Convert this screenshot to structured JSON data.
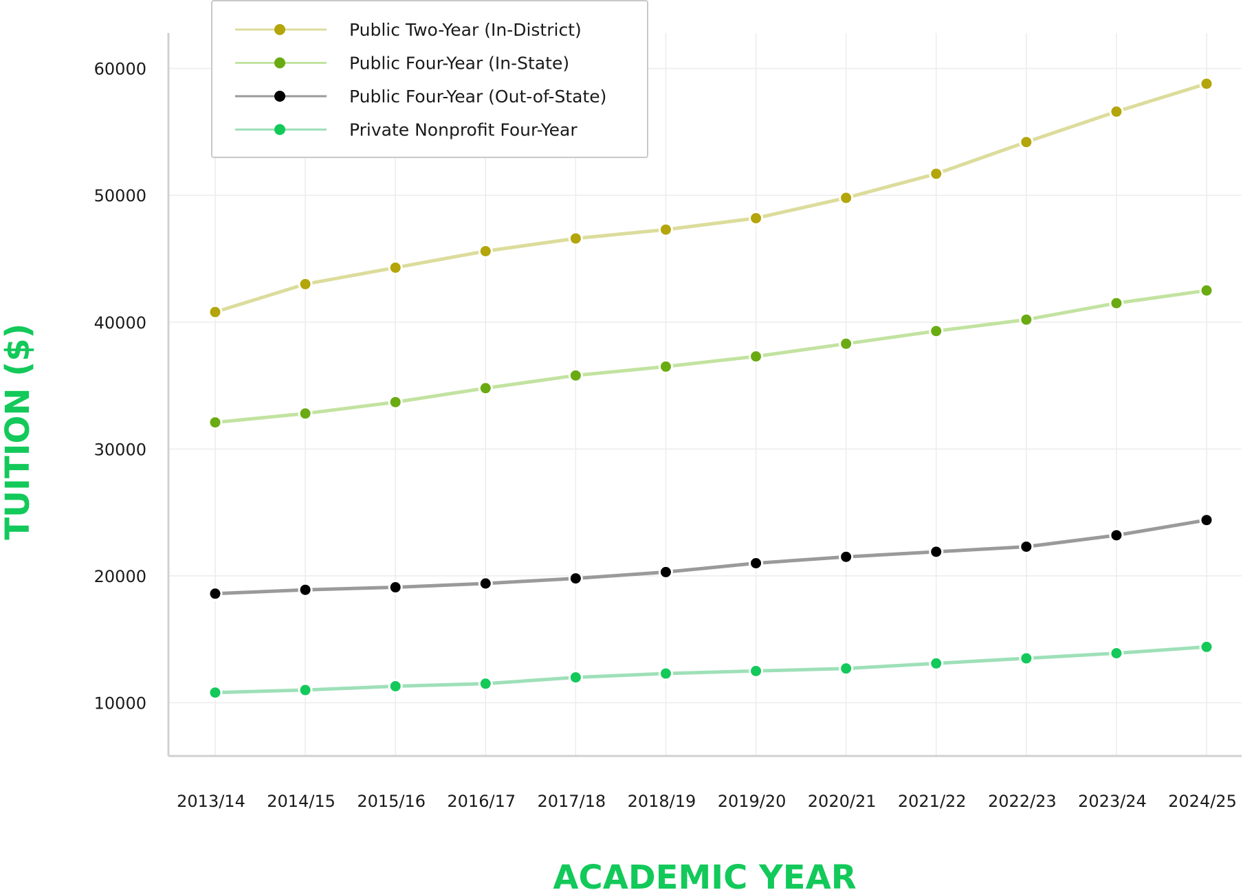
{
  "chart_data": {
    "type": "line",
    "title": "",
    "xlabel": "ACADEMIC YEAR",
    "ylabel": "TUITION ($)",
    "categories": [
      "2013/14",
      "2014/15",
      "2015/16",
      "2016/17",
      "2017/18",
      "2018/19",
      "2019/20",
      "2020/21",
      "2021/22",
      "2022/23",
      "2023/24",
      "2024/25"
    ],
    "yticks": [
      10000,
      20000,
      30000,
      40000,
      50000,
      60000
    ],
    "ylim": [
      5800,
      62800
    ],
    "grid": true,
    "legend_position": "top-left",
    "axis_title_color": "#12c95a",
    "series": [
      {
        "name": "Public Two-Year (In-District)",
        "line_color": "#dcdc9c",
        "marker_color": "#b3a50a",
        "values": [
          40800,
          43000,
          44300,
          45600,
          46600,
          47300,
          48200,
          49800,
          51700,
          54200,
          56600,
          58800
        ]
      },
      {
        "name": "Public Four-Year (In-State)",
        "line_color": "#c2e3a0",
        "marker_color": "#6aab12",
        "values": [
          32100,
          32800,
          33700,
          34800,
          35800,
          36500,
          37300,
          38300,
          39300,
          40200,
          41500,
          42500
        ]
      },
      {
        "name": "Public Four-Year (Out-of-State)",
        "line_color": "#9a9a9a",
        "marker_color": "#000000",
        "values": [
          18600,
          18900,
          19100,
          19400,
          19800,
          20300,
          21000,
          21500,
          21900,
          22300,
          23200,
          24400
        ]
      },
      {
        "name": "Private Nonprofit Four-Year",
        "line_color": "#9ee0b8",
        "marker_color": "#12c95a",
        "values": [
          10800,
          11000,
          11300,
          11500,
          12000,
          12300,
          12500,
          12700,
          13100,
          13500,
          13900,
          14400
        ]
      }
    ]
  }
}
